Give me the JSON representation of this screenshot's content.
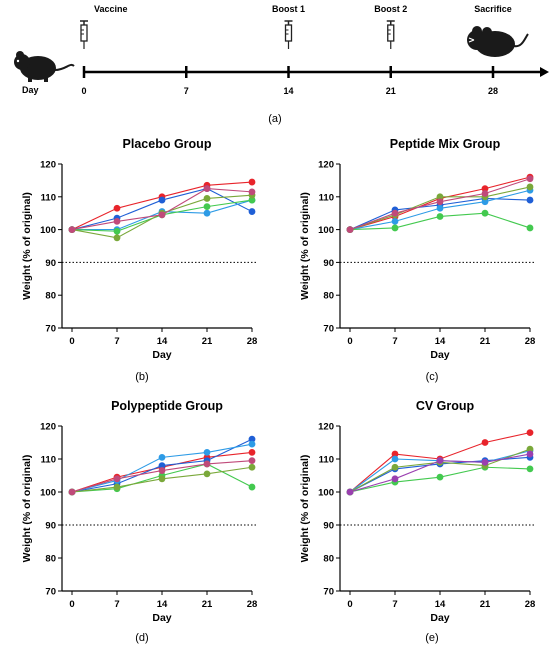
{
  "timeline": {
    "events": [
      {
        "label": "Vaccine",
        "day": "0",
        "icon": "syringe-icon"
      },
      {
        "label": "",
        "day": "7",
        "icon": ""
      },
      {
        "label": "Boost 1",
        "day": "14",
        "icon": "syringe-icon"
      },
      {
        "label": "Boost 2",
        "day": "21",
        "icon": "syringe-icon"
      },
      {
        "label": "Sacrifice",
        "day": "28",
        "icon": "mouse-icon"
      }
    ],
    "axis_label": "Day",
    "start_icon": "mouse-icon",
    "caption": "(a)"
  },
  "colors": {
    "red": "#e8242b",
    "blue": "#1f5fd6",
    "lightblue": "#2d9be6",
    "green": "#43c94f",
    "olive": "#7aa83a",
    "purple": "#9a3fb0",
    "mauve": "#c04a7a",
    "dashed": "#000000"
  },
  "chart_data": [
    {
      "type": "line",
      "title": "Placebo Group",
      "xlabel": "Day",
      "ylabel": "Weight (% of original)",
      "x": [
        0,
        7,
        14,
        21,
        28
      ],
      "ylim": [
        70,
        120
      ],
      "yticks": [
        70,
        80,
        90,
        100,
        110,
        120
      ],
      "reference_line": 90,
      "caption": "(b)",
      "series": [
        {
          "color": "red",
          "values": [
            100,
            106.5,
            110,
            113.5,
            114.5
          ]
        },
        {
          "color": "blue",
          "values": [
            100,
            103.5,
            109,
            112.5,
            105.5
          ]
        },
        {
          "color": "lightblue",
          "values": [
            100,
            100,
            105.5,
            105,
            109
          ]
        },
        {
          "color": "green",
          "values": [
            100,
            99.5,
            104.5,
            107,
            109
          ]
        },
        {
          "color": "olive",
          "values": [
            100,
            97.5,
            105,
            109.5,
            110.5
          ]
        },
        {
          "color": "mauve",
          "values": [
            100,
            102.5,
            104.5,
            112.5,
            111.5
          ]
        }
      ]
    },
    {
      "type": "line",
      "title": "Peptide Mix Group",
      "xlabel": "Day",
      "ylabel": "Weight (% of original)",
      "x": [
        0,
        7,
        14,
        21,
        28
      ],
      "ylim": [
        70,
        120
      ],
      "yticks": [
        70,
        80,
        90,
        100,
        110,
        120
      ],
      "reference_line": 90,
      "caption": "(c)",
      "series": [
        {
          "color": "red",
          "values": [
            100,
            104,
            109.5,
            112.5,
            116
          ]
        },
        {
          "color": "blue",
          "values": [
            100,
            106,
            107.5,
            109.5,
            109
          ]
        },
        {
          "color": "lightblue",
          "values": [
            100,
            102.5,
            106.5,
            108.5,
            112
          ]
        },
        {
          "color": "green",
          "values": [
            100,
            100.5,
            104,
            105,
            100.5
          ]
        },
        {
          "color": "olive",
          "values": [
            100,
            104.5,
            110,
            110,
            113
          ]
        },
        {
          "color": "mauve",
          "values": [
            100,
            105,
            108.5,
            111,
            115.5
          ]
        }
      ]
    },
    {
      "type": "line",
      "title": "Polypeptide Group",
      "xlabel": "Day",
      "ylabel": "Weight (% of original)",
      "x": [
        0,
        7,
        14,
        21,
        28
      ],
      "ylim": [
        70,
        120
      ],
      "yticks": [
        70,
        80,
        90,
        100,
        110,
        120
      ],
      "reference_line": 90,
      "caption": "(d)",
      "series": [
        {
          "color": "red",
          "values": [
            100,
            104.5,
            107.5,
            110.5,
            112
          ]
        },
        {
          "color": "blue",
          "values": [
            100,
            102.5,
            108,
            109.5,
            116
          ]
        },
        {
          "color": "lightblue",
          "values": [
            100,
            103.5,
            110.5,
            112,
            114.5
          ]
        },
        {
          "color": "green",
          "values": [
            100,
            101,
            105,
            108.5,
            101.5
          ]
        },
        {
          "color": "olive",
          "values": [
            100,
            101.5,
            104,
            105.5,
            107.5
          ]
        },
        {
          "color": "mauve",
          "values": [
            100,
            104,
            106.5,
            108.5,
            109.5
          ]
        }
      ]
    },
    {
      "type": "line",
      "title": "CV Group",
      "xlabel": "Day",
      "ylabel": "Weight (% of original)",
      "x": [
        0,
        7,
        14,
        21,
        28
      ],
      "ylim": [
        70,
        120
      ],
      "yticks": [
        70,
        80,
        90,
        100,
        110,
        120
      ],
      "reference_line": 90,
      "caption": "(e)",
      "series": [
        {
          "color": "red",
          "values": [
            100,
            111.5,
            110,
            115,
            118
          ]
        },
        {
          "color": "blue",
          "values": [
            100,
            107,
            108.5,
            109.5,
            110.5
          ]
        },
        {
          "color": "lightblue",
          "values": [
            100,
            110,
            109.5,
            109,
            112.5
          ]
        },
        {
          "color": "green",
          "values": [
            100,
            103,
            104.5,
            107.5,
            107
          ]
        },
        {
          "color": "olive",
          "values": [
            100,
            107.5,
            109,
            108,
            113
          ]
        },
        {
          "color": "purple",
          "values": [
            100,
            104,
            109.5,
            109,
            111.5
          ]
        }
      ]
    }
  ]
}
